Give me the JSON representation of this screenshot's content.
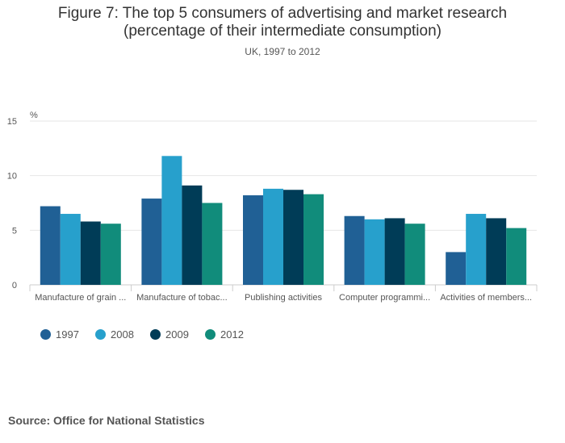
{
  "title": {
    "line1": "Figure 7: The top 5 consumers of advertising and market research",
    "line2": "(percentage of their intermediate consumption)"
  },
  "subtitle": "UK, 1997 to 2012",
  "source": "Source: Office for National Statistics",
  "colors": {
    "s1997": "#206095",
    "s2008": "#27a0cc",
    "s2009": "#003c57",
    "s2012": "#118c7b",
    "grid": "#e6e6e6",
    "axis": "#cccccc",
    "text": "#555555"
  },
  "chart_data": {
    "type": "bar",
    "title": "Figure 7: The top 5 consumers of advertising and market research (percentage of their intermediate consumption)",
    "subtitle": "UK, 1997 to 2012",
    "ylabel": "%",
    "ylim": [
      0,
      15
    ],
    "yticks": [
      0,
      5,
      10,
      15
    ],
    "grid": true,
    "legend_position": "bottom-left",
    "categories": [
      "Manufacture of grain ...",
      "Manufacture of tobac...",
      "Publishing activities",
      "Computer programmi...",
      "Activities of members..."
    ],
    "series": [
      {
        "name": "1997",
        "color": "#206095",
        "values": [
          7.2,
          7.9,
          8.2,
          6.3,
          3.0
        ]
      },
      {
        "name": "2008",
        "color": "#27a0cc",
        "values": [
          6.5,
          11.8,
          8.8,
          6.0,
          6.5
        ]
      },
      {
        "name": "2009",
        "color": "#003c57",
        "values": [
          5.8,
          9.1,
          8.7,
          6.1,
          6.1
        ]
      },
      {
        "name": "2012",
        "color": "#118c7b",
        "values": [
          5.6,
          7.5,
          8.3,
          5.6,
          5.2
        ]
      }
    ]
  }
}
